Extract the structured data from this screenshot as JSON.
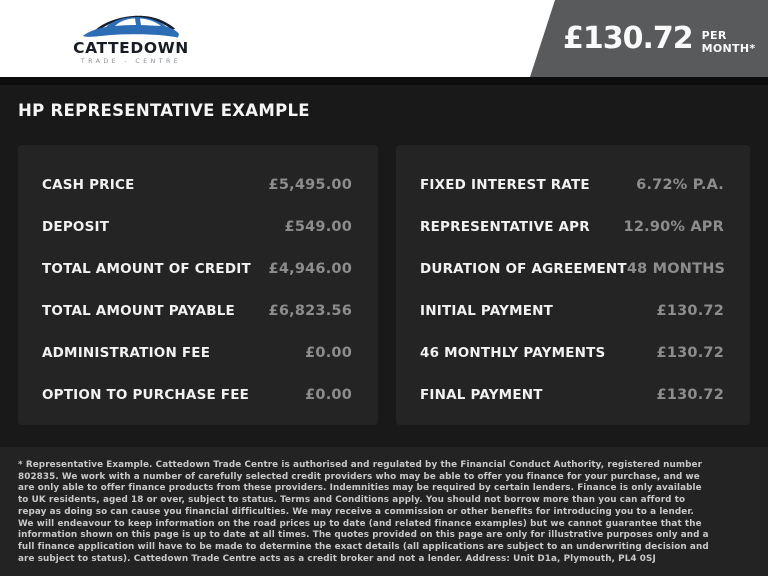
{
  "header": {
    "logo": {
      "name": "CATTEDOWN",
      "tagline": "TRADE - CENTRE"
    },
    "price_banner": {
      "amount": "£130.72",
      "suffix": "PER MONTH*"
    }
  },
  "page_title": "HP REPRESENTATIVE EXAMPLE",
  "finance_example": {
    "left_column": [
      {
        "label": "CASH PRICE",
        "value": "£5,495.00"
      },
      {
        "label": "DEPOSIT",
        "value": "£549.00"
      },
      {
        "label": "TOTAL AMOUNT OF CREDIT",
        "value": "£4,946.00"
      },
      {
        "label": "TOTAL AMOUNT PAYABLE",
        "value": "£6,823.56"
      },
      {
        "label": "ADMINISTRATION FEE",
        "value": "£0.00"
      },
      {
        "label": "OPTION TO PURCHASE FEE",
        "value": "£0.00"
      }
    ],
    "right_column": [
      {
        "label": "FIXED INTEREST RATE",
        "value": "6.72% P.A."
      },
      {
        "label": "REPRESENTATIVE APR",
        "value": "12.90% APR"
      },
      {
        "label": "DURATION OF AGREEMENT",
        "value": "48 MONTHS"
      },
      {
        "label": "INITIAL PAYMENT",
        "value": "£130.72"
      },
      {
        "label": "46 MONTHLY PAYMENTS",
        "value": "£130.72"
      },
      {
        "label": "FINAL PAYMENT",
        "value": "£130.72"
      }
    ]
  },
  "footer": {
    "disclaimer": "* Representative Example. Cattedown Trade Centre is authorised and regulated by the Financial Conduct Authority, registered number 802835. We work with a number of carefully selected credit providers who may be able to offer you finance for your purchase, and we are only able to offer finance products from these providers. Indemnities may be required by certain lenders. Finance is only available to UK residents, aged 18 or over, subject to status. Terms and Conditions apply. You should not borrow more than you can afford to repay as doing so can cause you financial difficulties. We may receive a commission or other benefits for introducing you to a lender. We will endeavour to keep information on the road prices up to date (and related finance examples) but we cannot guarantee that the information shown on this page is up to date at all times. The quotes provided on this page are only for illustrative purposes only and a full finance application will have to be made to determine the exact details (all applications are subject to an underwriting decision and are subject to status). Cattedown Trade Centre acts as a credit broker and not a lender. Address: Unit D1a, Plymouth, PL4 0SJ"
  },
  "colors": {
    "page_background": "#191919",
    "panel_background": "#242424",
    "banner_gray": "#595a5c",
    "label_text": "#f2f2f2",
    "value_text": "#8d8d8d",
    "footer_text": "#c9c9c9",
    "logo_blue": "#2d6db5",
    "logo_dark": "#15202e"
  }
}
